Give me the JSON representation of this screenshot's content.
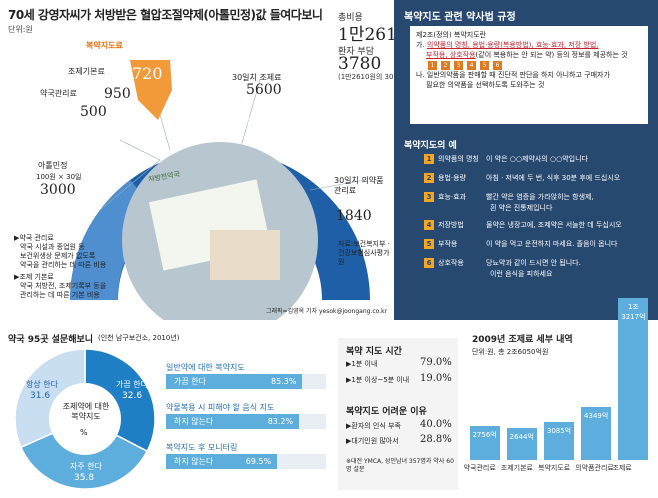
{
  "header": {
    "title": "70세 강영자씨가 처방받은 혈압조절약제(아톨민정)값 들여다보니",
    "unit": "단위:원"
  },
  "totals": {
    "total_label": "총비용",
    "total_value": "1만2610",
    "patient_label": "환자 부담",
    "patient_value": "3780",
    "patient_note": "(1만2610원의 30%)"
  },
  "fan": {
    "items": [
      {
        "label": "복약지도료",
        "value": "720"
      },
      {
        "label": "조제기본료",
        "value": "950"
      },
      {
        "label": "약국관리료",
        "value": "500"
      },
      {
        "label": "아톨민정",
        "sub": "100원 × 30일",
        "value": "3000"
      },
      {
        "label": "30일치 조제료",
        "value": "5600"
      },
      {
        "label": "30일치 의약품 관리료",
        "value": "1840"
      }
    ],
    "arc_left": "약값",
    "arc_right": "조제료 등",
    "photo_caption": "처방전약국"
  },
  "notes": {
    "pharmacy_title": "▶약국 관리료",
    "pharmacy_lines": [
      "약국 시설과 종업원 등",
      "보건위생상 문제가 없도록",
      "약국을 관리하는 데 따른 비용"
    ],
    "base_title": "▶조제 기본료",
    "base_lines": [
      "약국 처방전, 조제기록부 등을",
      "관리하는 데 따른 기본 비용"
    ],
    "source": "자료:보건복지부 · 건강보험심사평가원",
    "credit": "그래픽=김영옥 기자 yesok@joongang.co.kr"
  },
  "law": {
    "title": "복약지도 관련 약사법 규정",
    "article": "제2조(정의) 복약지도란",
    "line_a_prefix": "가. ",
    "line_a_underlined": "의약품의 명칭, 용법·용량(복용방법), 효능·효과, 저장 방법,",
    "line_a2_underlined": "부작용, 상호작용",
    "line_a2_rest": "(같이 복용하는 안 되는 약) 등의 정보를 제공하는 것",
    "line_b": "나. 일반의약품을 판매할 때 진단적 판단을 하지 아니하고 구매자가",
    "line_b2": "필요한 의약품을 선택하도록 도와주는 것"
  },
  "examples": {
    "title": "복약지도의 예",
    "rows": [
      {
        "n": "1",
        "name": "의약품의 명칭",
        "text": "이 약은 ○○제약사의 ○○약입니다"
      },
      {
        "n": "2",
        "name": "용법·용량",
        "text": "아침 · 저녁에 두 번, 식후 30분 후에 드십시오"
      },
      {
        "n": "3",
        "name": "효능·효과",
        "text": "빨간 약은 염증을 가라앉히는 항생제,"
      },
      {
        "n": "",
        "name": "",
        "text": "흰 약은 진통제입니다"
      },
      {
        "n": "4",
        "name": "저장방법",
        "text": "물약은 냉장고에, 조제약은 서늘한 데 두십시오"
      },
      {
        "n": "5",
        "name": "부작용",
        "text": "이 약을 먹고 운전하지 마세요. 졸음이 옵니다"
      },
      {
        "n": "6",
        "name": "상호작용",
        "text": "당뇨약과 같이 드시면 안 됩니다."
      },
      {
        "n": "",
        "name": "",
        "text": "이런 음식을 피하세요"
      }
    ]
  },
  "survey": {
    "title": "약국 95곳 설문해보니",
    "note": "(인천 남구보건소, 2010년)",
    "pie_center": "조제약에 대한 복약지도",
    "pie_unit": "%",
    "pie": [
      {
        "label": "가끔 한다",
        "value": 32.6,
        "color": "#1f7fc4"
      },
      {
        "label": "자주 한다",
        "value": 35.8,
        "color": "#5eaedd"
      },
      {
        "label": "항상 한다",
        "value": 31.6,
        "color": "#c9def0"
      }
    ],
    "bars": [
      {
        "title": "일반약에 대한 복약지도",
        "label": "가끔 한다",
        "value": "85.3%",
        "pct": 85.3
      },
      {
        "title": "약물복용 시 피해야 할 음식 지도",
        "label": "하지 않는다",
        "value": "83.2%",
        "pct": 83.2
      },
      {
        "title": "복약지도 후 모니터링",
        "label": "하지 않는다",
        "value": "69.5%",
        "pct": 69.5
      }
    ]
  },
  "time": {
    "title": "복약 지도 시간",
    "rows": [
      {
        "label": "▶1분 이내",
        "value": "79.0%"
      },
      {
        "label": "▶1분 이상~5분 이내",
        "value": "19.0%"
      }
    ],
    "diff_title": "복약지도 어려운 이유",
    "diff_rows": [
      {
        "label": "▶환자의 인식 부족",
        "value": "40.0%"
      },
      {
        "label": "▶대기인원 많아서",
        "value": "28.8%"
      }
    ],
    "footnote": "※대전 YMCA, 성인남녀 357명과 약사 60명 설문"
  },
  "chart_data": {
    "type": "bar",
    "title": "2009년 조제료 세부 내역",
    "subtitle": "단위:원, 총 2조6050억원",
    "categories": [
      "약국관리료",
      "조제기본료",
      "복약지도료",
      "의약품관리료",
      "조제료"
    ],
    "values": [
      2756,
      2644,
      3085,
      4349,
      13217
    ],
    "value_labels": [
      "2756억",
      "2644억",
      "3085억",
      "4349억",
      "1조 3217억"
    ],
    "ylim": [
      0,
      13217
    ]
  }
}
